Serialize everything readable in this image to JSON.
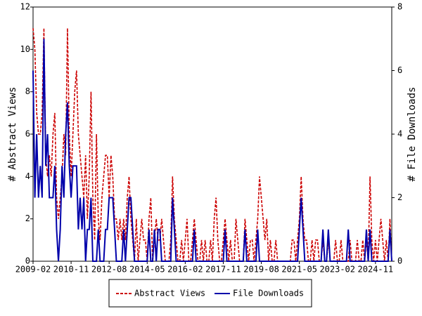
{
  "chart_data": {
    "type": "line",
    "y_label": "# Abstract Views",
    "y2_label": "# File Downloads",
    "x": [
      "2009-02",
      "2009-03",
      "2009-04",
      "2009-05",
      "2009-06",
      "2009-07",
      "2009-08",
      "2009-09",
      "2009-10",
      "2009-11",
      "2009-12",
      "2010-01",
      "2010-02",
      "2010-03",
      "2010-04",
      "2010-05",
      "2010-06",
      "2010-07",
      "2010-08",
      "2010-09",
      "2010-10",
      "2010-11",
      "2010-12",
      "2011-01",
      "2011-02",
      "2011-03",
      "2011-04",
      "2011-05",
      "2011-06",
      "2011-07",
      "2011-08",
      "2011-09",
      "2011-10",
      "2011-11",
      "2011-12",
      "2012-01",
      "2012-02",
      "2012-03",
      "2012-04",
      "2012-05",
      "2012-06",
      "2012-07",
      "2012-08",
      "2012-09",
      "2012-10",
      "2012-11",
      "2012-12",
      "2013-01",
      "2013-02",
      "2013-03",
      "2013-04",
      "2013-05",
      "2013-06",
      "2013-07",
      "2013-08",
      "2013-09",
      "2013-10",
      "2013-11",
      "2013-12",
      "2014-01",
      "2014-02",
      "2014-03",
      "2014-04",
      "2014-05",
      "2014-06",
      "2014-07",
      "2014-08",
      "2014-09",
      "2014-10",
      "2014-11",
      "2014-12",
      "2015-01",
      "2015-02",
      "2015-03",
      "2015-04",
      "2015-05",
      "2015-06",
      "2015-07",
      "2015-08",
      "2015-09",
      "2015-10",
      "2015-11",
      "2015-12",
      "2016-01",
      "2016-02",
      "2016-03",
      "2016-04",
      "2016-05",
      "2016-06",
      "2016-07",
      "2016-08",
      "2016-09",
      "2016-10",
      "2016-11",
      "2016-12",
      "2017-01",
      "2017-02",
      "2017-03",
      "2017-04",
      "2017-05",
      "2017-06",
      "2017-07",
      "2017-08",
      "2017-09",
      "2017-10",
      "2017-11",
      "2017-12",
      "2018-01",
      "2018-02",
      "2018-03",
      "2018-04",
      "2018-05",
      "2018-06",
      "2018-07",
      "2018-08",
      "2018-09",
      "2018-10",
      "2018-11",
      "2018-12",
      "2019-01",
      "2019-02",
      "2019-03",
      "2019-04",
      "2019-05",
      "2019-06",
      "2019-07",
      "2019-08",
      "2019-09",
      "2019-10",
      "2019-11",
      "2019-12",
      "2020-01",
      "2020-02",
      "2020-03",
      "2020-04",
      "2020-05",
      "2020-06",
      "2020-07",
      "2020-08",
      "2020-09",
      "2020-10",
      "2020-11",
      "2020-12",
      "2021-01",
      "2021-02",
      "2021-03",
      "2021-04",
      "2021-05",
      "2021-06",
      "2021-07",
      "2021-08",
      "2021-09",
      "2021-10",
      "2021-11",
      "2021-12",
      "2022-01",
      "2022-02",
      "2022-03",
      "2022-04",
      "2022-05",
      "2022-06",
      "2022-07",
      "2022-08",
      "2022-09",
      "2022-10",
      "2022-11",
      "2022-12",
      "2023-01",
      "2023-02",
      "2023-03",
      "2023-04",
      "2023-05",
      "2023-06",
      "2023-07",
      "2023-08",
      "2023-09",
      "2023-10",
      "2023-11",
      "2023-12",
      "2024-01",
      "2024-02",
      "2024-03",
      "2024-04",
      "2024-05",
      "2024-06",
      "2024-07",
      "2024-08",
      "2024-09",
      "2024-10",
      "2024-11",
      "2024-12",
      "2025-01",
      "2025-02",
      "2025-03",
      "2025-04",
      "2025-05",
      "2025-06",
      "2025-07",
      "2025-08"
    ],
    "xticks": [
      "2009-02",
      "2010-11",
      "2012-08",
      "2014-05",
      "2016-02",
      "2017-11",
      "2019-08",
      "2021-05",
      "2023-02",
      "2024-11"
    ],
    "ylim": [
      0,
      12
    ],
    "yticks": [
      0,
      2,
      4,
      6,
      8,
      10,
      12
    ],
    "y2lim": [
      0,
      8
    ],
    "y2ticks": [
      0,
      2,
      4,
      6,
      8
    ],
    "series": [
      {
        "name": "Abstract Views",
        "color": "#cc0000",
        "dash": true,
        "values": [
          11,
          10,
          7,
          6,
          6,
          7,
          11,
          5,
          4,
          5,
          4,
          6,
          7,
          3,
          2,
          3,
          4,
          6,
          5,
          11,
          6,
          4,
          6,
          8,
          9,
          6,
          5,
          4,
          3,
          5,
          2,
          4,
          8,
          3,
          1,
          6,
          2,
          1,
          3,
          4,
          5,
          5,
          3,
          5,
          4,
          2,
          2,
          1,
          2,
          1,
          2,
          1,
          3,
          4,
          2,
          1,
          0,
          2,
          0,
          1,
          2,
          1,
          1,
          0,
          2,
          3,
          0,
          1,
          2,
          1,
          1,
          2,
          1,
          0,
          0,
          0,
          1,
          4,
          2,
          1,
          0,
          0,
          1,
          0,
          1,
          2,
          0,
          0,
          1,
          2,
          1,
          0,
          0,
          1,
          0,
          1,
          0,
          0,
          1,
          0,
          2,
          3,
          1,
          0,
          0,
          1,
          2,
          1,
          0,
          1,
          0,
          0,
          2,
          1,
          0,
          0,
          0,
          2,
          1,
          0,
          1,
          1,
          0,
          1,
          2,
          4,
          3,
          2,
          1,
          2,
          0,
          1,
          0,
          0,
          1,
          0,
          0,
          0,
          0,
          0,
          0,
          0,
          0,
          1,
          1,
          0,
          1,
          2,
          4,
          2,
          1,
          1,
          0,
          0,
          1,
          0,
          1,
          1,
          0,
          0,
          1,
          0,
          0,
          1,
          0,
          0,
          0,
          1,
          0,
          0,
          1,
          0,
          0,
          0,
          0,
          1,
          0,
          0,
          0,
          1,
          0,
          0,
          1,
          0,
          1,
          0,
          4,
          1,
          0,
          1,
          0,
          1,
          2,
          1,
          0,
          1,
          0,
          2,
          0
        ]
      },
      {
        "name": "File Downloads",
        "color": "#0000aa",
        "dash": false,
        "axis": "y2",
        "values": [
          6,
          2,
          4,
          2,
          3,
          2,
          7,
          3,
          4,
          2,
          2,
          2,
          3,
          1,
          0,
          1,
          3,
          2,
          4,
          5,
          3,
          2,
          3,
          3,
          3,
          1,
          2,
          1,
          2,
          0,
          1,
          1,
          2,
          0,
          0,
          0,
          1,
          0,
          0,
          0,
          1,
          1,
          2,
          2,
          2,
          1,
          0,
          0,
          0,
          0,
          1,
          0,
          1,
          2,
          2,
          1,
          0,
          0,
          0,
          0,
          0,
          0,
          0,
          0,
          1,
          0,
          0,
          1,
          0,
          1,
          1,
          0,
          0,
          0,
          0,
          0,
          0,
          2,
          1,
          0,
          0,
          0,
          0,
          0,
          0,
          0,
          0,
          0,
          0,
          1,
          0,
          0,
          0,
          0,
          0,
          0,
          0,
          0,
          0,
          0,
          0,
          0,
          0,
          0,
          0,
          0,
          1,
          0,
          0,
          0,
          0,
          0,
          0,
          0,
          0,
          0,
          0,
          1,
          0,
          0,
          0,
          0,
          0,
          0,
          1,
          0,
          0,
          0,
          0,
          0,
          0,
          0,
          0,
          0,
          0,
          0,
          0,
          0,
          0,
          0,
          0,
          0,
          0,
          0,
          0,
          0,
          0,
          1,
          2,
          1,
          0,
          0,
          0,
          0,
          0,
          0,
          0,
          0,
          0,
          0,
          1,
          0,
          0,
          1,
          0,
          0,
          0,
          0,
          0,
          0,
          0,
          0,
          0,
          0,
          1,
          0,
          0,
          0,
          0,
          0,
          0,
          0,
          0,
          0,
          1,
          0,
          1,
          0,
          0,
          0,
          0,
          0,
          0,
          0,
          0,
          0,
          0,
          1,
          0
        ]
      }
    ]
  }
}
